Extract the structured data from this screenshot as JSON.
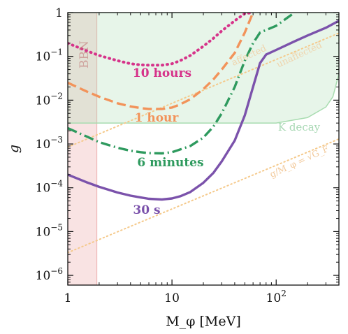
{
  "chart_data": {
    "type": "line",
    "xlabel": "M_φ [MeV]",
    "ylabel": "g",
    "xscale": "log",
    "yscale": "log",
    "xlim": [
      1,
      400
    ],
    "ylim": [
      6e-07,
      1
    ],
    "grid": false,
    "x_ticks": [
      {
        "value": 1,
        "base": "1",
        "exp": ""
      },
      {
        "value": 10,
        "base": "10",
        "exp": ""
      },
      {
        "value": 100,
        "base": "10",
        "exp": "2"
      }
    ],
    "y_ticks": [
      {
        "value": 1,
        "base": "1",
        "exp": ""
      },
      {
        "value": 0.1,
        "base": "10",
        "exp": "−1"
      },
      {
        "value": 0.01,
        "base": "10",
        "exp": "−2"
      },
      {
        "value": 0.001,
        "base": "10",
        "exp": "−3"
      },
      {
        "value": 0.0001,
        "base": "10",
        "exp": "−4"
      },
      {
        "value": 1e-05,
        "base": "10",
        "exp": "−5"
      },
      {
        "value": 1e-06,
        "base": "10",
        "exp": "−6"
      }
    ],
    "series": [
      {
        "name": "10 hours",
        "color": "#d6338a",
        "style": "dotted",
        "x": [
          1,
          1.5,
          2,
          3,
          4,
          5,
          6,
          8,
          10,
          12,
          15,
          20,
          25,
          30,
          40,
          50,
          60
        ],
        "y": [
          0.2,
          0.135,
          0.105,
          0.08,
          0.068,
          0.064,
          0.063,
          0.063,
          0.068,
          0.08,
          0.105,
          0.17,
          0.26,
          0.38,
          0.65,
          0.95,
          1.0
        ]
      },
      {
        "name": "1 hour",
        "color": "#f2935a",
        "style": "dashed",
        "x": [
          1,
          1.5,
          2,
          3,
          4,
          5,
          6,
          8,
          10,
          12,
          15,
          20,
          25,
          30,
          40,
          50,
          60
        ],
        "y": [
          0.025,
          0.016,
          0.012,
          0.0085,
          0.0072,
          0.0066,
          0.0063,
          0.0063,
          0.0068,
          0.008,
          0.0105,
          0.018,
          0.03,
          0.05,
          0.12,
          0.35,
          1.0
        ]
      },
      {
        "name": "6 minutes",
        "color": "#2e9a5e",
        "style": "dashdot",
        "x": [
          1,
          1.5,
          2,
          3,
          4,
          5,
          6,
          8,
          10,
          12,
          15,
          20,
          25,
          30,
          40,
          50,
          60,
          70,
          100,
          150
        ],
        "y": [
          0.0023,
          0.0015,
          0.0011,
          0.00082,
          0.0007,
          0.00065,
          0.00062,
          0.00061,
          0.00065,
          0.00075,
          0.0009,
          0.0014,
          0.0025,
          0.005,
          0.02,
          0.08,
          0.2,
          0.35,
          0.5,
          1.0
        ]
      },
      {
        "name": "30 s",
        "color": "#7b52ab",
        "style": "solid",
        "x": [
          1,
          1.5,
          2,
          3,
          4,
          5,
          6,
          8,
          10,
          12,
          15,
          20,
          25,
          30,
          40,
          50,
          60,
          70,
          80,
          100,
          150,
          200,
          300,
          400
        ],
        "y": [
          0.0002,
          0.000135,
          0.000105,
          7.8e-05,
          6.6e-05,
          6e-05,
          5.6e-05,
          5.4e-05,
          5.7e-05,
          6.4e-05,
          8e-05,
          0.00013,
          0.00022,
          0.0004,
          0.0012,
          0.0045,
          0.02,
          0.07,
          0.11,
          0.14,
          0.22,
          0.3,
          0.45,
          0.65
        ]
      }
    ],
    "regions": [
      {
        "label": "BBN",
        "color": "#e89090",
        "x_range": [
          1,
          1.9
        ]
      },
      {
        "label": "K decay",
        "color": "#a8dcb0"
      }
    ],
    "reference_lines": [
      {
        "label": "g/M_φ = √G_F",
        "color": "#f5c98a",
        "x": [
          1,
          400
        ],
        "y": [
          3.3e-06,
          0.0013
        ]
      },
      {
        "label": "BBN affected / unaffected",
        "color": "#f5c98a",
        "x": [
          1,
          400
        ],
        "y": [
          0.00085,
          0.34
        ]
      }
    ],
    "annotations": {
      "bbn": "BBN",
      "k_decay": "K decay",
      "gf_relation": "g/M_φ = √G_F",
      "affected": "affected",
      "unaffected": "unaffected"
    }
  }
}
